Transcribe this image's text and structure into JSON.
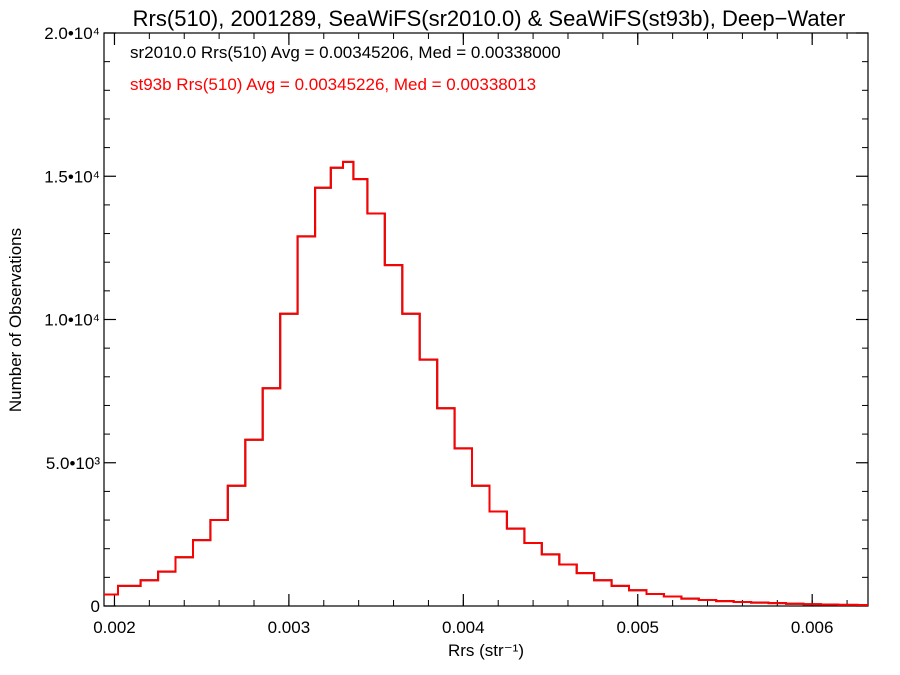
{
  "chart_data": {
    "type": "line",
    "title": "Rrs(510), 2001289, SeaWiFS(sr2010.0) & SeaWiFS(st93b), Deep−Water",
    "xlabel": "Rrs (str⁻¹)",
    "ylabel": "Number of Observations",
    "xlim": [
      0.00194,
      0.00632
    ],
    "ylim": [
      0,
      20000
    ],
    "x_ticks": [
      {
        "value": 0.002,
        "label": "0.002"
      },
      {
        "value": 0.003,
        "label": "0.003"
      },
      {
        "value": 0.004,
        "label": "0.004"
      },
      {
        "value": 0.005,
        "label": "0.005"
      },
      {
        "value": 0.006,
        "label": "0.006"
      }
    ],
    "y_ticks": [
      {
        "value": 0,
        "label": "0"
      },
      {
        "value": 5000,
        "label": "5.0•10³"
      },
      {
        "value": 10000,
        "label": "1.0•10⁴"
      },
      {
        "value": 15000,
        "label": "1.5•10⁴"
      },
      {
        "value": 20000,
        "label": "2.0•10⁴"
      }
    ],
    "grid": false,
    "annotations": [
      {
        "text": "sr2010.0 Rrs(510) Avg = 0.00345206, Med = 0.00338000",
        "color": "#000000"
      },
      {
        "text": "st93b Rrs(510) Avg = 0.00345226, Med = 0.00338013",
        "color": "#ff0000"
      }
    ],
    "series": [
      {
        "color": "#000000",
        "points": [
          [
            0.00194,
            400
          ],
          [
            0.0021,
            700
          ],
          [
            0.0022,
            900
          ],
          [
            0.0023,
            1200
          ],
          [
            0.0024,
            1700
          ],
          [
            0.0025,
            2300
          ],
          [
            0.0026,
            3000
          ],
          [
            0.0027,
            4200
          ],
          [
            0.0028,
            5800
          ],
          [
            0.0029,
            7600
          ],
          [
            0.003,
            10200
          ],
          [
            0.0031,
            12900
          ],
          [
            0.0032,
            14600
          ],
          [
            0.00328,
            15300
          ],
          [
            0.00334,
            15500
          ],
          [
            0.0034,
            14900
          ],
          [
            0.0035,
            13700
          ],
          [
            0.0036,
            11900
          ],
          [
            0.0037,
            10200
          ],
          [
            0.0038,
            8600
          ],
          [
            0.0039,
            6900
          ],
          [
            0.004,
            5500
          ],
          [
            0.0041,
            4200
          ],
          [
            0.0042,
            3300
          ],
          [
            0.0043,
            2700
          ],
          [
            0.0044,
            2200
          ],
          [
            0.0045,
            1800
          ],
          [
            0.0046,
            1450
          ],
          [
            0.0047,
            1150
          ],
          [
            0.0048,
            900
          ],
          [
            0.0049,
            700
          ],
          [
            0.005,
            550
          ],
          [
            0.0051,
            420
          ],
          [
            0.0052,
            330
          ],
          [
            0.0053,
            260
          ],
          [
            0.0054,
            210
          ],
          [
            0.0055,
            170
          ],
          [
            0.0056,
            140
          ],
          [
            0.0057,
            120
          ],
          [
            0.0058,
            100
          ],
          [
            0.0059,
            80
          ],
          [
            0.006,
            60
          ],
          [
            0.0061,
            50
          ],
          [
            0.0062,
            40
          ],
          [
            0.00632,
            30
          ]
        ]
      },
      {
        "color": "#ff0000",
        "points": [
          [
            0.00194,
            400
          ],
          [
            0.0021,
            700
          ],
          [
            0.0022,
            900
          ],
          [
            0.0023,
            1200
          ],
          [
            0.0024,
            1700
          ],
          [
            0.0025,
            2300
          ],
          [
            0.0026,
            3000
          ],
          [
            0.0027,
            4200
          ],
          [
            0.0028,
            5800
          ],
          [
            0.0029,
            7600
          ],
          [
            0.003,
            10200
          ],
          [
            0.0031,
            12900
          ],
          [
            0.0032,
            14600
          ],
          [
            0.00328,
            15300
          ],
          [
            0.00334,
            15500
          ],
          [
            0.0034,
            14900
          ],
          [
            0.0035,
            13700
          ],
          [
            0.0036,
            11900
          ],
          [
            0.0037,
            10200
          ],
          [
            0.0038,
            8600
          ],
          [
            0.0039,
            6900
          ],
          [
            0.004,
            5500
          ],
          [
            0.0041,
            4200
          ],
          [
            0.0042,
            3300
          ],
          [
            0.0043,
            2700
          ],
          [
            0.0044,
            2200
          ],
          [
            0.0045,
            1800
          ],
          [
            0.0046,
            1450
          ],
          [
            0.0047,
            1150
          ],
          [
            0.0048,
            900
          ],
          [
            0.0049,
            700
          ],
          [
            0.005,
            550
          ],
          [
            0.0051,
            420
          ],
          [
            0.0052,
            330
          ],
          [
            0.0053,
            260
          ],
          [
            0.0054,
            210
          ],
          [
            0.0055,
            170
          ],
          [
            0.0056,
            140
          ],
          [
            0.0057,
            120
          ],
          [
            0.0058,
            100
          ],
          [
            0.0059,
            80
          ],
          [
            0.006,
            60
          ],
          [
            0.0061,
            50
          ],
          [
            0.0062,
            40
          ],
          [
            0.00632,
            30
          ]
        ]
      }
    ]
  }
}
